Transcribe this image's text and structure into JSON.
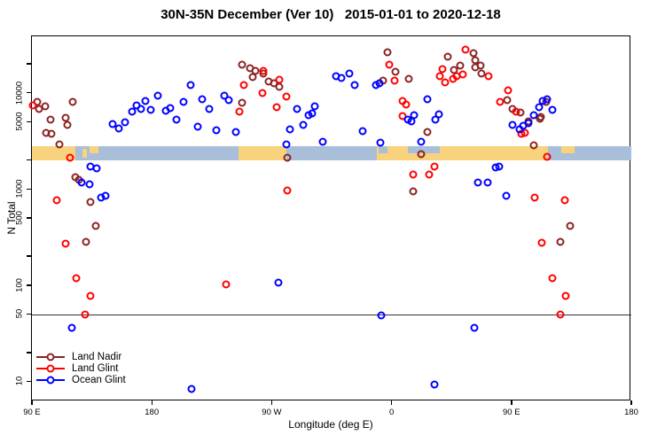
{
  "title": "30N-35N December (Ver 10)   2015-01-01 to 2020-12-18",
  "axes": {
    "y_title": "N Total",
    "x_title": "Longitude (deg E)",
    "y_ticks": [
      {
        "label": "10",
        "n": 10
      },
      {
        "label": "50",
        "n": 50
      },
      {
        "label": "100",
        "n": 100
      },
      {
        "label": "500",
        "n": 500
      },
      {
        "label": "1000",
        "n": 1000
      },
      {
        "label": "5000",
        "n": 5000
      },
      {
        "label": "10000",
        "n": 10000
      }
    ],
    "y_minor_ticks": [
      20,
      200,
      2000,
      20000
    ],
    "x_ticks": [
      {
        "label": "90 E",
        "lon": 90
      },
      {
        "label": "180",
        "lon": 180
      },
      {
        "label": "90 W",
        "lon": 270
      },
      {
        "label": "0",
        "lon": 360
      },
      {
        "label": "90 E",
        "lon": 450
      },
      {
        "label": "180",
        "lon": 540
      }
    ]
  },
  "chart_data": {
    "type": "scatter",
    "title": "30N-35N December (Ver 10)   2015-01-01 to 2020-12-18",
    "xlabel": "Longitude (deg E)",
    "ylabel": "N Total",
    "x_axis_note": "longitude wraps: 90E to 180 to 90W to 0 to 90E to 180 (stored as 90..540 deg E)",
    "y_scale": "log10",
    "xlim": [
      90,
      540
    ],
    "ylim_log": [
      8,
      40000
    ],
    "reference_line_n": 50,
    "series": [
      {
        "name": "Land Nadir",
        "color": "#8B2323",
        "points": [
          [
            94,
            8050
          ],
          [
            95.5,
            6790
          ],
          [
            100,
            7240
          ],
          [
            104,
            5260
          ],
          [
            115,
            5500
          ],
          [
            116.5,
            4630
          ],
          [
            120.5,
            8050
          ],
          [
            100.5,
            3830
          ],
          [
            104.5,
            3750
          ],
          [
            110.5,
            2900
          ],
          [
            122.5,
            1320
          ],
          [
            125,
            1240
          ],
          [
            134,
            730
          ],
          [
            138,
            411
          ],
          [
            130.5,
            281
          ],
          [
            247.5,
            7890
          ],
          [
            248,
            19600
          ],
          [
            253.5,
            18000
          ],
          [
            258,
            16900
          ],
          [
            263.5,
            15900
          ],
          [
            255.5,
            14600
          ],
          [
            267.5,
            13100
          ],
          [
            271.5,
            12600
          ],
          [
            275.5,
            11600
          ],
          [
            282,
            2110
          ],
          [
            357,
            26500
          ],
          [
            363,
            16600
          ],
          [
            353.5,
            13400
          ],
          [
            373,
            14000
          ],
          [
            387,
            3910
          ],
          [
            382.5,
            2300
          ],
          [
            376.5,
            940
          ],
          [
            402.5,
            23800
          ],
          [
            421.5,
            25900
          ],
          [
            423,
            21800
          ],
          [
            427,
            19200
          ],
          [
            422.5,
            18500
          ],
          [
            407,
            17300
          ],
          [
            411.5,
            19200
          ],
          [
            427.5,
            15900
          ],
          [
            446.5,
            8400
          ],
          [
            451,
            6790
          ],
          [
            457,
            6240
          ],
          [
            463,
            5050
          ],
          [
            472,
            5610
          ],
          [
            476,
            8050
          ],
          [
            471.5,
            5380
          ],
          [
            467,
            2840
          ],
          [
            494,
            411
          ],
          [
            487,
            281
          ]
        ]
      },
      {
        "name": "Land Glint",
        "color": "#FF0000",
        "points": [
          [
            90.5,
            7390
          ],
          [
            118.5,
            2110
          ],
          [
            108.5,
            762
          ],
          [
            115.5,
            269
          ],
          [
            123,
            117
          ],
          [
            134,
            77
          ],
          [
            130,
            49
          ],
          [
            249,
            12000
          ],
          [
            263.5,
            16900
          ],
          [
            263,
            9950
          ],
          [
            275.5,
            13700
          ],
          [
            281,
            9140
          ],
          [
            274,
            7080
          ],
          [
            246,
            6370
          ],
          [
            282,
            960
          ],
          [
            236,
            101
          ],
          [
            358.5,
            19600
          ],
          [
            362.5,
            13400
          ],
          [
            368,
            8220
          ],
          [
            371,
            7550
          ],
          [
            368,
            5730
          ],
          [
            398.5,
            17700
          ],
          [
            396,
            14900
          ],
          [
            376.5,
            1410
          ],
          [
            388,
            1410
          ],
          [
            392,
            1710
          ],
          [
            415.5,
            28200
          ],
          [
            400.5,
            12800
          ],
          [
            406,
            14000
          ],
          [
            408.5,
            14900
          ],
          [
            413.5,
            15600
          ],
          [
            432.5,
            14900
          ],
          [
            447.5,
            10600
          ],
          [
            441.5,
            8050
          ],
          [
            453.5,
            6370
          ],
          [
            457.5,
            3750
          ],
          [
            460,
            3830
          ],
          [
            477,
            2160
          ],
          [
            467.5,
            813
          ],
          [
            473,
            275
          ],
          [
            481,
            117
          ],
          [
            491,
            77
          ],
          [
            487,
            49
          ],
          [
            490,
            762
          ]
        ]
      },
      {
        "name": "Ocean Glint",
        "color": "#0000FF",
        "points": [
          [
            150.5,
            4730
          ],
          [
            155,
            4260
          ],
          [
            160,
            4930
          ],
          [
            165,
            6370
          ],
          [
            168.5,
            7390
          ],
          [
            172,
            6790
          ],
          [
            175,
            8220
          ],
          [
            179,
            6640
          ],
          [
            184.5,
            9330
          ],
          [
            190.5,
            6500
          ],
          [
            193.5,
            6930
          ],
          [
            198.5,
            5260
          ],
          [
            203.5,
            8050
          ],
          [
            209,
            12000
          ],
          [
            214.5,
            4450
          ],
          [
            217.5,
            8570
          ],
          [
            223,
            6790
          ],
          [
            228.5,
            4080
          ],
          [
            234.5,
            9330
          ],
          [
            237.5,
            8400
          ],
          [
            243,
            3910
          ],
          [
            284,
            4170
          ],
          [
            289,
            6790
          ],
          [
            293.5,
            4630
          ],
          [
            297.5,
            5850
          ],
          [
            300.5,
            6110
          ],
          [
            302,
            7240
          ],
          [
            308.5,
            3100
          ],
          [
            281,
            2900
          ],
          [
            318,
            14900
          ],
          [
            322,
            14300
          ],
          [
            328,
            15900
          ],
          [
            332.5,
            12000
          ],
          [
            348,
            12000
          ],
          [
            351,
            12500
          ],
          [
            338,
            3980
          ],
          [
            351.5,
            3030
          ],
          [
            372.5,
            5260
          ],
          [
            375,
            5050
          ],
          [
            377,
            5850
          ],
          [
            382,
            3100
          ],
          [
            387,
            8570
          ],
          [
            393,
            5250
          ],
          [
            395.5,
            5960
          ],
          [
            127,
            1160
          ],
          [
            133,
            1120
          ],
          [
            134,
            1710
          ],
          [
            138.5,
            1640
          ],
          [
            142,
            813
          ],
          [
            145.5,
            849
          ],
          [
            425,
            1160
          ],
          [
            432,
            1160
          ],
          [
            438,
            1670
          ],
          [
            441,
            1710
          ],
          [
            446,
            849
          ],
          [
            451,
            4630
          ],
          [
            456,
            4170
          ],
          [
            459,
            4540
          ],
          [
            463,
            4840
          ],
          [
            466.5,
            5850
          ],
          [
            471,
            7080
          ],
          [
            473.5,
            8220
          ],
          [
            477,
            8570
          ],
          [
            481,
            6640
          ],
          [
            120,
            36
          ],
          [
            275,
            106
          ],
          [
            210,
            8.3
          ],
          [
            352.5,
            48
          ],
          [
            422,
            36
          ],
          [
            392.5,
            9.2
          ]
        ]
      }
    ],
    "geo_band": {
      "description": "land/ocean strip map of the 30N-35N latitude belt drawn across the plot",
      "colors": {
        "land": "#F9D27E",
        "ocean": "#A9BED9"
      },
      "segments": [
        {
          "lon0": 90,
          "lon1": 122.5,
          "surface": "land",
          "row": "full"
        },
        {
          "lon0": 122.5,
          "lon1": 245,
          "surface": "ocean",
          "row": "full"
        },
        {
          "lon0": 128,
          "lon1": 131.5,
          "surface": "land",
          "row": "mid"
        },
        {
          "lon0": 133,
          "lon1": 140,
          "surface": "land",
          "row": "top"
        },
        {
          "lon0": 245,
          "lon1": 281,
          "surface": "land",
          "row": "full"
        },
        {
          "lon0": 281,
          "lon1": 349,
          "surface": "ocean",
          "row": "full"
        },
        {
          "lon0": 349,
          "lon1": 477.5,
          "surface": "land",
          "row": "full"
        },
        {
          "lon0": 350.5,
          "lon1": 357,
          "surface": "ocean",
          "row": "top"
        },
        {
          "lon0": 372.5,
          "lon1": 396.5,
          "surface": "ocean",
          "row": "top"
        },
        {
          "lon0": 477.5,
          "lon1": 540,
          "surface": "ocean",
          "row": "full"
        },
        {
          "lon0": 487.5,
          "lon1": 497.5,
          "surface": "land",
          "row": "top"
        }
      ]
    },
    "legend_position": "bottom-left"
  },
  "legend": {
    "items": [
      {
        "label": "Land Nadir",
        "color": "#8B2323"
      },
      {
        "label": "Land Glint",
        "color": "#FF0000"
      },
      {
        "label": "Ocean Glint",
        "color": "#0000FF"
      }
    ]
  }
}
